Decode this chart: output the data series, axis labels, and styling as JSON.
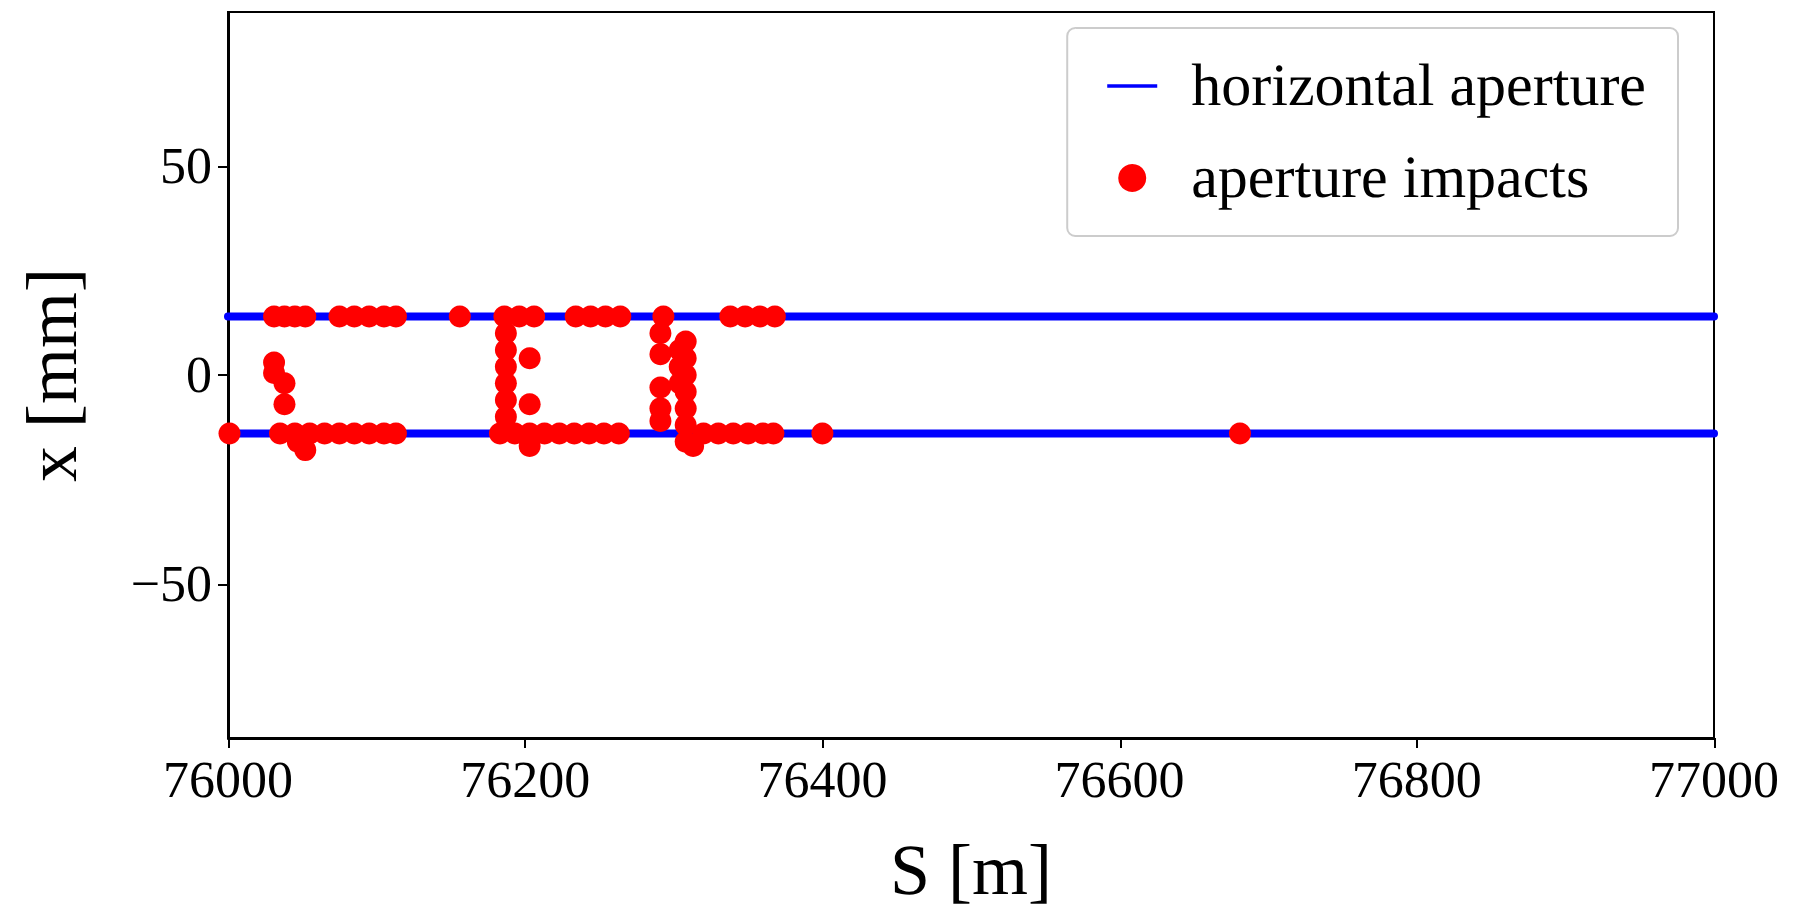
{
  "chart_data": {
    "type": "scatter",
    "xlabel": "S [m]",
    "ylabel": "x [mm]",
    "xlim": [
      76000,
      77000
    ],
    "xticks": [
      76000,
      76200,
      76400,
      76600,
      76800,
      77000
    ],
    "ylim": [
      -87,
      87
    ],
    "yticks": [
      -50,
      0,
      50
    ],
    "grid": false,
    "legend": "top right",
    "marker": "circle",
    "series": [
      {
        "name": "horizontal aperture",
        "type": "line",
        "line_style": "solid",
        "marker": "none",
        "color": "#0000ff",
        "x": [
          76000,
          77000
        ],
        "values": [
          14,
          14
        ]
      },
      {
        "type": "line",
        "line_style": "solid",
        "marker": "none",
        "color": "#0000ff",
        "x": [
          76000,
          77000
        ],
        "values": [
          -14,
          -14
        ]
      },
      {
        "name": "aperture impacts",
        "color": "#ff0000",
        "x": [
          76031,
          76038,
          76045,
          76052,
          76075,
          76085,
          76095,
          76105,
          76113,
          76156,
          76186,
          76196,
          76206,
          76234,
          76244,
          76254,
          76264,
          76293,
          76338,
          76348,
          76358,
          76368,
          76001,
          76035,
          76045,
          76055,
          76065,
          76075,
          76085,
          76095,
          76105,
          76113,
          76052,
          76047,
          76183,
          76193,
          76203,
          76213,
          76223,
          76233,
          76243,
          76253,
          76263,
          76203,
          76320,
          76330,
          76340,
          76350,
          76360,
          76367,
          76313,
          76400,
          76681,
          76031,
          76031,
          76038,
          76038,
          76187,
          76187,
          76187,
          76187,
          76187,
          76187,
          76203,
          76203,
          76291,
          76291,
          76291,
          76291,
          76291,
          76308,
          76308,
          76308,
          76308,
          76308,
          76308,
          76308,
          76304,
          76304,
          76304
        ],
        "values": [
          14,
          14,
          14,
          14,
          14,
          14,
          14,
          14,
          14,
          14,
          14,
          14,
          14,
          14,
          14,
          14,
          14,
          14,
          14,
          14,
          14,
          14,
          -14,
          -14,
          -14,
          -14,
          -14,
          -14,
          -14,
          -14,
          -14,
          -14,
          -18,
          -16,
          -14,
          -14,
          -14,
          -14,
          -14,
          -14,
          -14,
          -14,
          -14,
          -17,
          -14,
          -14,
          -14,
          -14,
          -14,
          -14,
          -17,
          -14,
          -14,
          3,
          0.5,
          -2,
          -7,
          10,
          6,
          2,
          -2,
          -6,
          -10,
          4,
          -7,
          10,
          5,
          -3,
          -8,
          -11,
          8,
          4,
          0,
          -4,
          -8,
          -12,
          -16,
          6,
          2,
          -2
        ]
      }
    ]
  }
}
